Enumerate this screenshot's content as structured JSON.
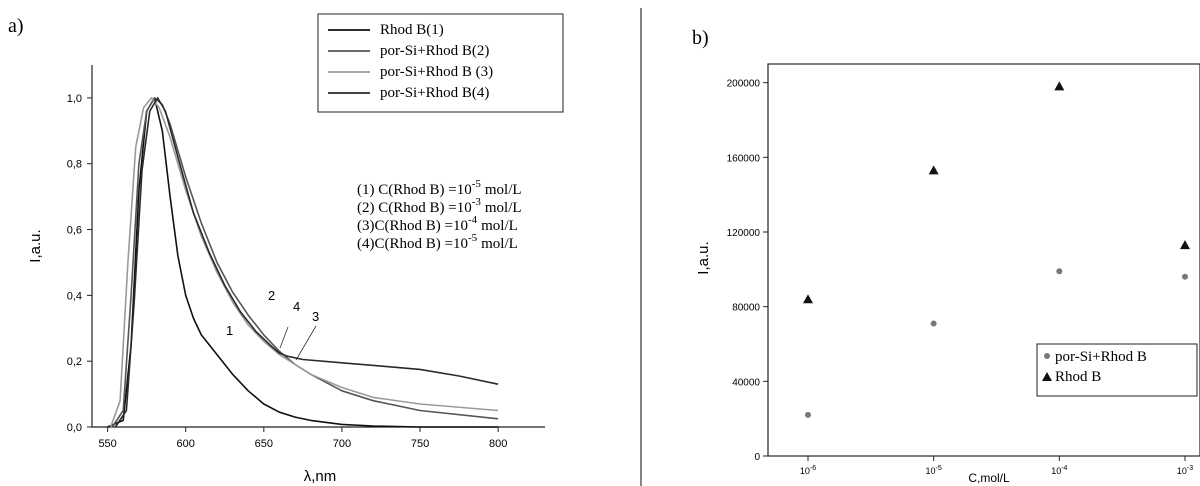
{
  "chart_data": [
    {
      "panel_label": "a)",
      "type": "line",
      "xlabel": "λ,nm",
      "ylabel": "I,a.u.",
      "xlim": [
        540,
        830
      ],
      "ylim": [
        0,
        1.1
      ],
      "xticks": [
        550,
        600,
        650,
        700,
        750,
        800
      ],
      "yticks": [
        0.0,
        0.2,
        0.4,
        0.6,
        0.8,
        1.0
      ],
      "ytick_labels": [
        "0,0",
        "0,2",
        "0,4",
        "0,6",
        "0,8",
        "1,0"
      ],
      "grid": false,
      "legend_position": "top-right",
      "series": [
        {
          "name": "Rhod B(1)",
          "curve_label": "1",
          "color": "#111111",
          "x": [
            550,
            560,
            565,
            570,
            575,
            580,
            585,
            590,
            595,
            600,
            605,
            610,
            615,
            620,
            630,
            640,
            650,
            660,
            670,
            680,
            700,
            720,
            750,
            800
          ],
          "y": [
            0.0,
            0.02,
            0.25,
            0.72,
            0.96,
            1.0,
            0.9,
            0.7,
            0.52,
            0.4,
            0.33,
            0.28,
            0.25,
            0.22,
            0.16,
            0.11,
            0.07,
            0.045,
            0.03,
            0.02,
            0.008,
            0.003,
            0.0,
            0.0
          ]
        },
        {
          "name": "por-Si+Rhod B(2)",
          "curve_label": "2",
          "color": "#555555",
          "x": [
            553,
            560,
            565,
            570,
            575,
            580,
            585,
            590,
            600,
            610,
            620,
            630,
            640,
            650,
            660,
            670,
            680,
            700,
            720,
            750,
            800
          ],
          "y": [
            0.0,
            0.05,
            0.4,
            0.8,
            0.96,
            1.0,
            0.98,
            0.92,
            0.76,
            0.62,
            0.5,
            0.41,
            0.34,
            0.28,
            0.23,
            0.19,
            0.16,
            0.11,
            0.08,
            0.05,
            0.025
          ]
        },
        {
          "name": "por-Si+Rhod B (3)",
          "curve_label": "3",
          "color": "#9a9a9a",
          "x": [
            552,
            558,
            563,
            568,
            573,
            578,
            583,
            590,
            600,
            610,
            620,
            630,
            640,
            650,
            660,
            670,
            680,
            700,
            720,
            750,
            800
          ],
          "y": [
            0.0,
            0.08,
            0.5,
            0.85,
            0.97,
            1.0,
            0.97,
            0.88,
            0.72,
            0.58,
            0.47,
            0.38,
            0.31,
            0.26,
            0.22,
            0.19,
            0.16,
            0.12,
            0.09,
            0.07,
            0.05
          ]
        },
        {
          "name": "por-Si+Rhod B(4)",
          "curve_label": "4",
          "color": "#2a2a2a",
          "x": [
            555,
            562,
            567,
            572,
            577,
            582,
            587,
            595,
            605,
            615,
            625,
            635,
            645,
            655,
            660,
            665,
            675,
            700,
            725,
            750,
            775,
            800
          ],
          "y": [
            0.0,
            0.05,
            0.38,
            0.78,
            0.96,
            1.0,
            0.96,
            0.82,
            0.65,
            0.53,
            0.43,
            0.35,
            0.29,
            0.245,
            0.225,
            0.215,
            0.205,
            0.195,
            0.185,
            0.175,
            0.155,
            0.13
          ]
        }
      ],
      "annotations": [
        "(1) C(Rhod B) =10",
        "-5",
        "mol/L",
        "(2) C(Rhod B) =10",
        "-3",
        "mol/L",
        "(3)C(Rhod B) =10",
        "-4",
        "mol/L",
        "(4)C(Rhod B) =10",
        "-5",
        "mol/L"
      ]
    },
    {
      "panel_label": "b)",
      "type": "scatter",
      "xlabel": "C,mol/L",
      "ylabel": "I,a.u.",
      "xscale": "log",
      "xlim": [
        1e-06,
        0.001
      ],
      "ylim": [
        0,
        210000
      ],
      "yticks": [
        0,
        40000,
        80000,
        120000,
        160000,
        200000
      ],
      "ytick_labels": [
        "0",
        "40000",
        "80000",
        "120000",
        "160000",
        "200000"
      ],
      "xticks": [
        1e-06,
        1e-05,
        0.0001,
        0.001
      ],
      "xtick_bases": [
        "10",
        "10",
        "10",
        "10"
      ],
      "xtick_exps": [
        "-6",
        "-5",
        "-4",
        "-3"
      ],
      "grid": false,
      "legend_position": "bottom-right",
      "series": [
        {
          "name": "por-Si+Rhod B",
          "marker": "circle",
          "color": "#777777",
          "x": [
            1e-06,
            1e-05,
            0.0001,
            0.001
          ],
          "y": [
            22000,
            71000,
            99000,
            96000
          ]
        },
        {
          "name": "Rhod B",
          "marker": "triangle",
          "color": "#111111",
          "x": [
            1e-06,
            1e-05,
            0.0001,
            0.001
          ],
          "y": [
            84000,
            153000,
            198000,
            113000
          ]
        }
      ]
    }
  ]
}
